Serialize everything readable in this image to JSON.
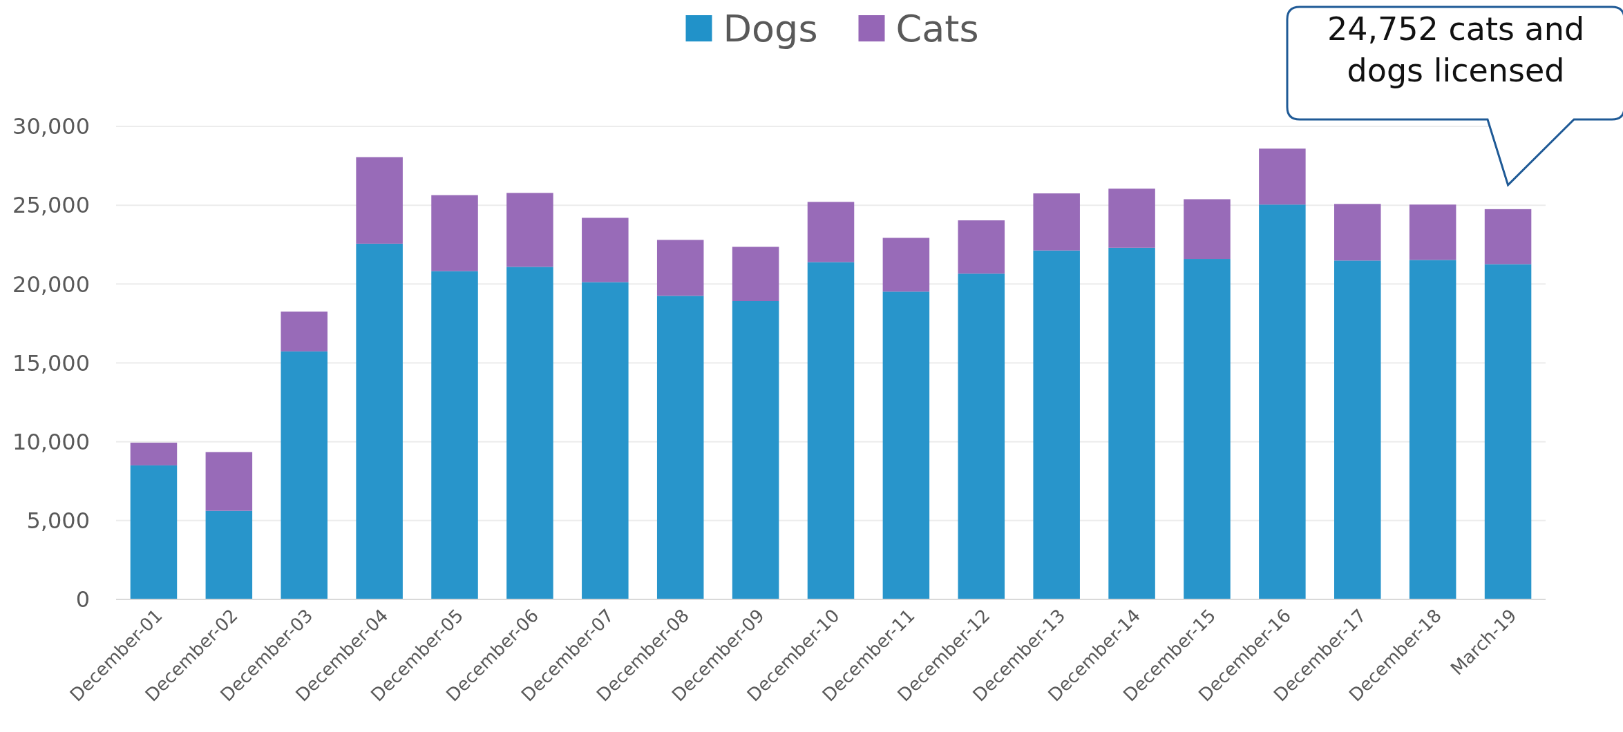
{
  "chart_data": {
    "type": "bar",
    "stacked": true,
    "legend": "top",
    "grid": "y",
    "categories": [
      "December-01",
      "December-02",
      "December-03",
      "December-04",
      "December-05",
      "December-06",
      "December-07",
      "December-08",
      "December-09",
      "December-10",
      "December-11",
      "December-12",
      "December-13",
      "December-14",
      "December-15",
      "December-16",
      "December-17",
      "December-18",
      "March-19"
    ],
    "series": [
      {
        "name": "Dogs",
        "color": "#2192c9",
        "values": [
          8500,
          5620,
          15730,
          22560,
          20820,
          21090,
          20120,
          19250,
          18920,
          21390,
          19520,
          20660,
          22130,
          22300,
          21590,
          25040,
          21490,
          21530,
          21260
        ]
      },
      {
        "name": "Cats",
        "color": "#9566b6",
        "values": [
          1440,
          3720,
          2520,
          5490,
          4820,
          4690,
          4080,
          3550,
          3440,
          3820,
          3410,
          3380,
          3620,
          3750,
          3790,
          3550,
          3590,
          3510,
          3490
        ]
      }
    ],
    "ylim": [
      0,
      30000
    ],
    "yticks": [
      {
        "value": 0,
        "label": "0"
      },
      {
        "value": 5000,
        "label": "5,000"
      },
      {
        "value": 10000,
        "label": "10,000"
      },
      {
        "value": 15000,
        "label": "15,000"
      },
      {
        "value": 20000,
        "label": "20,000"
      },
      {
        "value": 25000,
        "label": "25,000"
      },
      {
        "value": 30000,
        "label": "30,000"
      }
    ],
    "annotations": [
      "24,752 cats and dogs licensed"
    ]
  }
}
